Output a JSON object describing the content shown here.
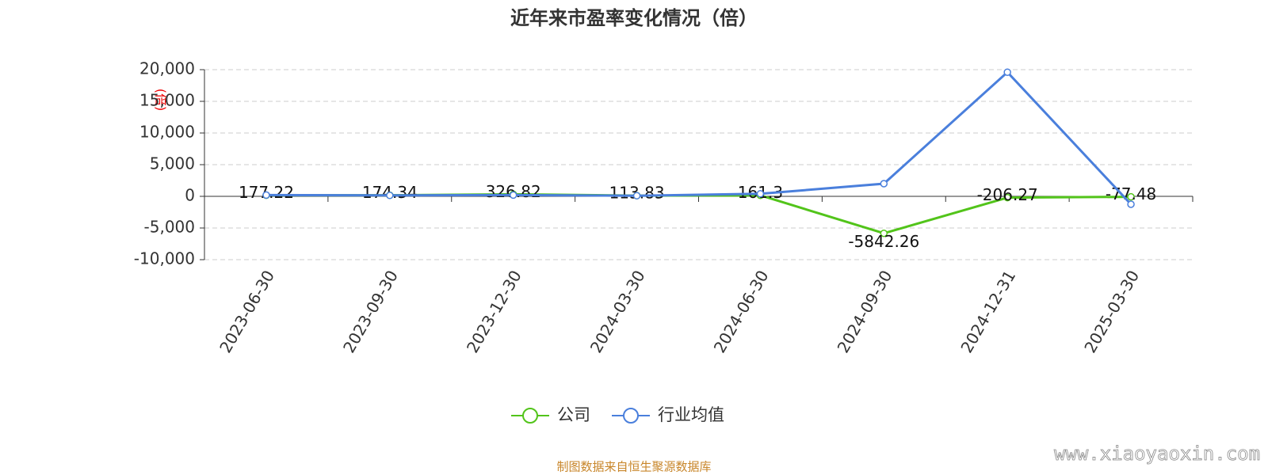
{
  "chart_data": {
    "type": "line",
    "title": "近年来市盈率变化情况（倍）",
    "y_label": "(倍)",
    "categories": [
      "2023-06-30",
      "2023-09-30",
      "2023-12-30",
      "2024-03-30",
      "2024-06-30",
      "2024-09-30",
      "2024-12-31",
      "2025-03-30"
    ],
    "series": [
      {
        "name": "公司",
        "color": "#52c41a",
        "values": [
          177.22,
          174.34,
          326.82,
          113.83,
          161.3,
          -5842.26,
          -206.27,
          -77.48
        ],
        "labels": true
      },
      {
        "name": "行业均值",
        "color": "#4a7fdc",
        "values": [
          200,
          150,
          200,
          100,
          400,
          2000,
          19600,
          -1250
        ],
        "labels": false
      }
    ],
    "ylim": [
      -10000,
      20000
    ],
    "yticks": [
      {
        "value": 20000,
        "label": "20,000"
      },
      {
        "value": 15000,
        "label": "15,000"
      },
      {
        "value": 10000,
        "label": "10,000"
      },
      {
        "value": 5000,
        "label": "5,000"
      },
      0,
      {
        "value": -5000,
        "label": "-5,000"
      },
      {
        "value": -10000,
        "label": "-10,000"
      }
    ],
    "grid": true,
    "legend": "bottom",
    "source": "制图数据来自恒生聚源数据库",
    "watermark": "www.xiaoyaoxin.com"
  }
}
